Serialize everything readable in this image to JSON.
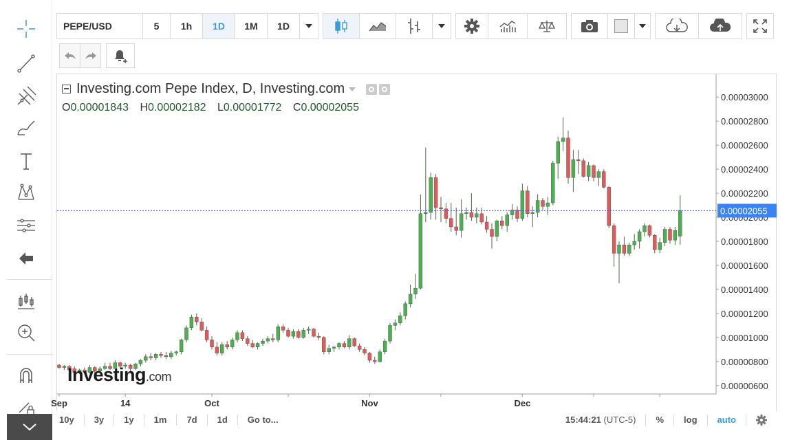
{
  "toolbar": {
    "symbol": "PEPE/USD",
    "intervals": [
      "5",
      "1h",
      "1D",
      "1M",
      "1D"
    ],
    "active_interval_index": 2,
    "accent": "#3b9bdf"
  },
  "legend": {
    "title": "Investing.com Pepe Index, D, Investing.com",
    "o_label": "O",
    "o_value": "0.00001843",
    "h_label": "H",
    "h_value": "0.00002182",
    "l_label": "L",
    "l_value": "0.00001772",
    "c_label": "C",
    "c_value": "0.00002055"
  },
  "watermark": {
    "brand": "Investing",
    "suffix": ".com"
  },
  "bottom_bar": {
    "ranges": [
      "10y",
      "3y",
      "1y",
      "1m",
      "7d",
      "1d"
    ],
    "goto": "Go to...",
    "time": "15:44:21",
    "timezone": "(UTC-5)",
    "percent": "%",
    "log": "log",
    "auto": "auto"
  },
  "colors": {
    "up": "#4caf50",
    "down": "#e05a5a",
    "price_line": "#3b5bdb",
    "price_label_bg": "#3b82f6"
  },
  "chart_data": {
    "type": "candlestick",
    "current_price": 2.055e-05,
    "current_price_label": "0.00002055",
    "ylim": [
      5.3e-06,
      3.19e-05
    ],
    "yticks": [
      6e-06,
      8e-06,
      1e-05,
      1.2e-05,
      1.4e-05,
      1.6e-05,
      1.8e-05,
      2e-05,
      2.2e-05,
      2.4e-05,
      2.6e-05,
      2.8e-05,
      3e-05
    ],
    "ytick_labels": [
      "0.00000600",
      "0.00000800",
      "0.00001000",
      "0.00001200",
      "0.00001400",
      "0.00001600",
      "0.00001800",
      "0.00002000",
      "0.00002200",
      "0.00002400",
      "0.00002600",
      "0.00002800",
      "0.00003000"
    ],
    "xtick_labels": [
      {
        "label": "Sep",
        "index": 0
      },
      {
        "label": "14",
        "index": 13
      },
      {
        "label": "Oct",
        "index": 30
      },
      {
        "label": "Nov",
        "index": 61
      },
      {
        "label": "Dec",
        "index": 91
      }
    ],
    "xtick_minor": [
      45,
      75,
      105,
      118
    ],
    "candles": [
      [
        7.7e-06,
        7.8e-06,
        7.4e-06,
        7.5e-06
      ],
      [
        7.5e-06,
        7.7e-06,
        7.3e-06,
        7.6e-06
      ],
      [
        7.6e-06,
        7.7e-06,
        7.2e-06,
        7.3e-06
      ],
      [
        7.4e-06,
        7.6e-06,
        7e-06,
        7.1e-06
      ],
      [
        7.1e-06,
        7.4e-06,
        7e-06,
        7.3e-06
      ],
      [
        7.3e-06,
        7.5e-06,
        7e-06,
        7.1e-06
      ],
      [
        7.1e-06,
        7.7e-06,
        7e-06,
        7.5e-06
      ],
      [
        7.5e-06,
        7.6e-06,
        7e-06,
        7.2e-06
      ],
      [
        7.2e-06,
        7.6e-06,
        7.1e-06,
        7.4e-06
      ],
      [
        7.4e-06,
        7.9e-06,
        7.3e-06,
        7.6e-06
      ],
      [
        7.6e-06,
        7.9e-06,
        7.3e-06,
        7.4e-06
      ],
      [
        7.4e-06,
        8.1e-06,
        7.3e-06,
        7.9e-06
      ],
      [
        7.9e-06,
        8e-06,
        7.4e-06,
        7.6e-06
      ],
      [
        7.6e-06,
        7.9e-06,
        7.4e-06,
        7.7e-06
      ],
      [
        7.7e-06,
        7.8e-06,
        7.2e-06,
        7.4e-06
      ],
      [
        7.4e-06,
        7.9e-06,
        7.3e-06,
        7.8e-06
      ],
      [
        7.8e-06,
        8.2e-06,
        7.6e-06,
        8.1e-06
      ],
      [
        8.1e-06,
        8.6e-06,
        7.9e-06,
        8.4e-06
      ],
      [
        8.4e-06,
        8.7e-06,
        8.1e-06,
        8.3e-06
      ],
      [
        8.3e-06,
        8.7e-06,
        8.1e-06,
        8.6e-06
      ],
      [
        8.6e-06,
        8.8e-06,
        8.3e-06,
        8.5e-06
      ],
      [
        8.5e-06,
        8.8e-06,
        8.2e-06,
        8.4e-06
      ],
      [
        8.4e-06,
        8.9e-06,
        8.2e-06,
        8.7e-06
      ],
      [
        8.7e-06,
        8.9e-06,
        8.5e-06,
        8.8e-06
      ],
      [
        8.8e-06,
        9.9e-06,
        8.6e-06,
        9.8e-06
      ],
      [
        9.8e-06,
        1.1e-05,
        9.6e-06,
        1.08e-05
      ],
      [
        1.08e-05,
        1.19e-05,
        1.06e-05,
        1.17e-05
      ],
      [
        1.17e-05,
        1.2e-05,
        1.1e-05,
        1.13e-05
      ],
      [
        1.13e-05,
        1.16e-05,
        1.05e-05,
        1.06e-05
      ],
      [
        1.06e-05,
        1.09e-05,
        9.6e-06,
        9.8e-06
      ],
      [
        9.8e-06,
        1.01e-05,
        9e-06,
        9.2e-06
      ],
      [
        9.2e-06,
        9.6e-06,
        8.5e-06,
        8.7e-06
      ],
      [
        8.7e-06,
        9.6e-06,
        8.5e-06,
        9.4e-06
      ],
      [
        9.4e-06,
        9.7e-06,
        9e-06,
        9.2e-06
      ],
      [
        9.2e-06,
        1e-05,
        9e-06,
        9.8e-06
      ],
      [
        9.8e-06,
        1.06e-05,
        9.6e-06,
        1.04e-05
      ],
      [
        1.04e-05,
        1.06e-05,
        9.7e-06,
        9.9e-06
      ],
      [
        9.9e-06,
        1.01e-05,
        9.3e-06,
        9.5e-06
      ],
      [
        9.5e-06,
        9.8e-06,
        9.1e-06,
        9.2e-06
      ],
      [
        9.2e-06,
        9.6e-06,
        9e-06,
        9.5e-06
      ],
      [
        9.5e-06,
        9.9e-06,
        9.3e-06,
        9.7e-06
      ],
      [
        9.7e-06,
        1.01e-05,
        9.5e-06,
        9.9e-06
      ],
      [
        9.9e-06,
        1.03e-05,
        9.6e-06,
        9.8e-06
      ],
      [
        9.8e-06,
        1.11e-05,
        9.6e-06,
        1.09e-05
      ],
      [
        1.09e-05,
        1.11e-05,
        1.04e-05,
        1.06e-05
      ],
      [
        1.06e-05,
        1.08e-05,
        1e-05,
        1.01e-05
      ],
      [
        1.01e-05,
        1.07e-05,
        9.9e-06,
        1.05e-05
      ],
      [
        1.05e-05,
        1.07e-05,
        9.9e-06,
        1e-05
      ],
      [
        1e-05,
        1.08e-05,
        9.9e-06,
        1.06e-05
      ],
      [
        1.06e-05,
        1.09e-05,
        1.03e-05,
        1.07e-05
      ],
      [
        1.07e-05,
        1.08e-05,
        1e-05,
        1.01e-05
      ],
      [
        1.01e-05,
        1.04e-05,
        9.8e-06,
        1e-05
      ],
      [
        1e-05,
        1.01e-05,
        8.6e-06,
        8.8e-06
      ],
      [
        8.8e-06,
        9.4e-06,
        8.6e-06,
        9.1e-06
      ],
      [
        9.1e-06,
        9.3e-06,
        8.8e-06,
        9.2e-06
      ],
      [
        9.2e-06,
        9.6e-06,
        9e-06,
        9.5e-06
      ],
      [
        9.5e-06,
        9.7e-06,
        9.1e-06,
        9.2e-06
      ],
      [
        9.2e-06,
        1.02e-05,
        9e-06,
        9.9e-06
      ],
      [
        9.9e-06,
        1e-05,
        9.2e-06,
        9.3e-06
      ],
      [
        9.3e-06,
        9.5e-06,
        8.8e-06,
        9e-06
      ],
      [
        9e-06,
        9.2e-06,
        8.5e-06,
        8.7e-06
      ],
      [
        8.7e-06,
        8.8e-06,
        7.9e-06,
        8.1e-06
      ],
      [
        8.1e-06,
        8.4e-06,
        7.8e-06,
        8e-06
      ],
      [
        8e-06,
        9e-06,
        7.9e-06,
        8.8e-06
      ],
      [
        8.8e-06,
        9.9e-06,
        8.6e-06,
        9.7e-06
      ],
      [
        9.7e-06,
        1.12e-05,
        9.5e-06,
        1.1e-05
      ],
      [
        1.1e-05,
        1.15e-05,
        1.06e-05,
        1.12e-05
      ],
      [
        1.12e-05,
        1.21e-05,
        1.1e-05,
        1.18e-05
      ],
      [
        1.18e-05,
        1.3e-05,
        1.15e-05,
        1.28e-05
      ],
      [
        1.28e-05,
        1.44e-05,
        1.25e-05,
        1.36e-05
      ],
      [
        1.36e-05,
        1.53e-05,
        1.32e-05,
        1.41e-05
      ],
      [
        1.41e-05,
        2.19e-05,
        1.4e-05,
        2.03e-05
      ],
      [
        2.03e-05,
        2.58e-05,
        1.96e-05,
        2.04e-05
      ],
      [
        2.04e-05,
        2.37e-05,
        1.98e-05,
        2.33e-05
      ],
      [
        2.33e-05,
        2.36e-05,
        1.98e-05,
        2.08e-05
      ],
      [
        2.08e-05,
        2.17e-05,
        1.96e-05,
        2.07e-05
      ],
      [
        2.07e-05,
        2.12e-05,
        1.95e-05,
        1.99e-05
      ],
      [
        1.99e-05,
        2.12e-05,
        1.88e-05,
        1.92e-05
      ],
      [
        1.92e-05,
        2.08e-05,
        1.85e-05,
        1.89e-05
      ],
      [
        1.89e-05,
        2.15e-05,
        1.83e-05,
        2.03e-05
      ],
      [
        2.03e-05,
        2.08e-05,
        1.98e-05,
        2.04e-05
      ],
      [
        2.04e-05,
        2.2e-05,
        1.97e-05,
        2e-05
      ],
      [
        2e-05,
        2.08e-05,
        1.95e-05,
        2.03e-05
      ],
      [
        2.03e-05,
        2.08e-05,
        1.94e-05,
        1.96e-05
      ],
      [
        1.96e-05,
        2.01e-05,
        1.87e-05,
        1.9e-05
      ],
      [
        1.9e-05,
        1.95e-05,
        1.74e-05,
        1.84e-05
      ],
      [
        1.84e-05,
        1.98e-05,
        1.8e-05,
        1.97e-05
      ],
      [
        1.97e-05,
        2.01e-05,
        1.9e-05,
        1.93e-05
      ],
      [
        1.93e-05,
        2.04e-05,
        1.88e-05,
        2.02e-05
      ],
      [
        2.02e-05,
        2.11e-05,
        1.98e-05,
        2.06e-05
      ],
      [
        2.06e-05,
        2.09e-05,
        1.96e-05,
        1.99e-05
      ],
      [
        1.99e-05,
        2.28e-05,
        1.97e-05,
        2.22e-05
      ],
      [
        2.22e-05,
        2.26e-05,
        2e-05,
        2.03e-05
      ],
      [
        2.03e-05,
        2.09e-05,
        1.92e-05,
        2.04e-05
      ],
      [
        2.04e-05,
        2.19e-05,
        2e-05,
        2.14e-05
      ],
      [
        2.14e-05,
        2.16e-05,
        2.06e-05,
        2.09e-05
      ],
      [
        2.09e-05,
        2.17e-05,
        2.02e-05,
        2.12e-05
      ],
      [
        2.12e-05,
        2.47e-05,
        2.1e-05,
        2.45e-05
      ],
      [
        2.45e-05,
        2.67e-05,
        2.32e-05,
        2.63e-05
      ],
      [
        2.63e-05,
        2.83e-05,
        2.55e-05,
        2.66e-05
      ],
      [
        2.66e-05,
        2.72e-05,
        2.28e-05,
        2.33e-05
      ],
      [
        2.33e-05,
        2.56e-05,
        2.21e-05,
        2.48e-05
      ],
      [
        2.48e-05,
        2.56e-05,
        2.36e-05,
        2.47e-05
      ],
      [
        2.47e-05,
        2.49e-05,
        2.33e-05,
        2.34e-05
      ],
      [
        2.34e-05,
        2.46e-05,
        2.3e-05,
        2.43e-05
      ],
      [
        2.43e-05,
        2.44e-05,
        2.3e-05,
        2.33e-05
      ],
      [
        2.33e-05,
        2.4e-05,
        2.26e-05,
        2.38e-05
      ],
      [
        2.38e-05,
        2.4e-05,
        2.24e-05,
        2.25e-05
      ],
      [
        2.25e-05,
        2.26e-05,
        1.91e-05,
        1.93e-05
      ],
      [
        1.93e-05,
        1.95e-05,
        1.59e-05,
        1.7e-05
      ],
      [
        1.7e-05,
        1.8e-05,
        1.45e-05,
        1.77e-05
      ],
      [
        1.77e-05,
        1.84e-05,
        1.68e-05,
        1.7e-05
      ],
      [
        1.7e-05,
        1.79e-05,
        1.68e-05,
        1.77e-05
      ],
      [
        1.77e-05,
        1.86e-05,
        1.73e-05,
        1.8e-05
      ],
      [
        1.8e-05,
        1.9e-05,
        1.74e-05,
        1.88e-05
      ],
      [
        1.88e-05,
        1.95e-05,
        1.84e-05,
        1.93e-05
      ],
      [
        1.93e-05,
        1.94e-05,
        1.83e-05,
        1.85e-05
      ],
      [
        1.85e-05,
        1.86e-05,
        1.7e-05,
        1.73e-05
      ],
      [
        1.73e-05,
        1.83e-05,
        1.7e-05,
        1.79e-05
      ],
      [
        1.79e-05,
        1.92e-05,
        1.76e-05,
        1.9e-05
      ],
      [
        1.9e-05,
        1.92e-05,
        1.78e-05,
        1.81e-05
      ],
      [
        1.81e-05,
        1.92e-05,
        1.77e-05,
        1.89e-05
      ],
      [
        1.843e-05,
        2.182e-05,
        1.772e-05,
        2.055e-05
      ]
    ]
  }
}
